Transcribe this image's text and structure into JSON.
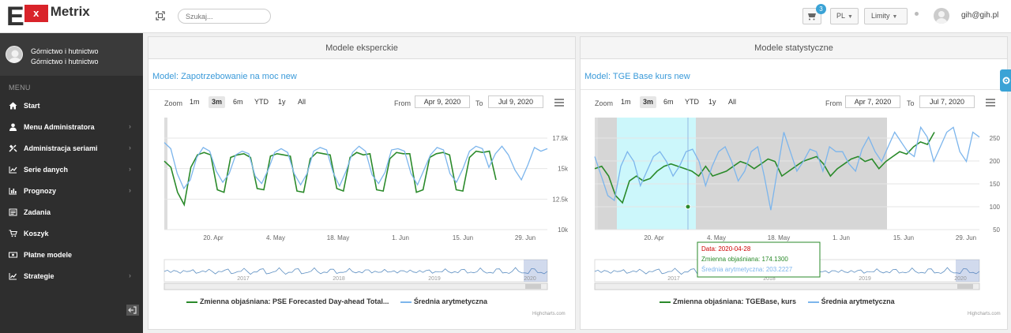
{
  "app": {
    "logo_e": "E",
    "logo_x": "x",
    "logo_name": "Metrix"
  },
  "topbar": {
    "search_placeholder": "Szukaj...",
    "cart_count": "3",
    "language": "PL",
    "limits_label": "Limity",
    "user_email": "gih@gih.pl"
  },
  "sidebar": {
    "profile_line1": "Górnictwo i hutnictwo",
    "profile_line2": "Górnictwo i hutnictwo",
    "menu_heading": "MENU",
    "items": [
      {
        "label": "Start",
        "icon": "home-icon",
        "has_children": false
      },
      {
        "label": "Menu Administratora",
        "icon": "user-icon",
        "has_children": true
      },
      {
        "label": "Administracja seriami",
        "icon": "tools-icon",
        "has_children": true
      },
      {
        "label": "Serie danych",
        "icon": "line-chart-icon",
        "has_children": true
      },
      {
        "label": "Prognozy",
        "icon": "bar-chart-icon",
        "has_children": true
      },
      {
        "label": "Zadania",
        "icon": "list-icon",
        "has_children": false
      },
      {
        "label": "Koszyk",
        "icon": "cart-icon",
        "has_children": false
      },
      {
        "label": "Płatne modele",
        "icon": "money-icon",
        "has_children": false
      },
      {
        "label": "Strategie",
        "icon": "trend-icon",
        "has_children": true
      }
    ]
  },
  "panels": [
    {
      "header": "Modele eksperckie",
      "model_title": "Model: Zapotrzebowanie na moc new",
      "zoom_label": "Zoom",
      "zoom_options": [
        "1m",
        "3m",
        "6m",
        "YTD",
        "1y",
        "All"
      ],
      "zoom_active": "3m",
      "from_label": "From",
      "from_date": "Apr 9, 2020",
      "to_label": "To",
      "to_date": "Jul 9, 2020",
      "credits": "Highcharts.com"
    },
    {
      "header": "Modele statystyczne",
      "model_title": "Model: TGE Base kurs new",
      "zoom_label": "Zoom",
      "zoom_options": [
        "1m",
        "3m",
        "6m",
        "YTD",
        "1y",
        "All"
      ],
      "zoom_active": "3m",
      "from_label": "From",
      "from_date": "Apr 7, 2020",
      "to_label": "To",
      "to_date": "Jul 7, 2020",
      "credits": "Highcharts.com"
    }
  ],
  "chart_data": [
    {
      "type": "line",
      "x_tick_labels": [
        "20. Apr",
        "4. May",
        "18. May",
        "1. Jun",
        "15. Jun",
        "29. Jun"
      ],
      "y_tick_labels": [
        "17.5k",
        "15k",
        "12.5k",
        "10k"
      ],
      "ylim": [
        10000,
        19000
      ],
      "navigator_years": [
        "2017",
        "2018",
        "2019",
        "2020"
      ],
      "series": [
        {
          "name": "Zmienna objaśniana: PSE Forecasted Day-ahead Total...",
          "color": "#2a8a2a",
          "values": [
            15500,
            15000,
            13000,
            12000,
            15000,
            16000,
            16200,
            16000,
            13200,
            13000,
            15800,
            16000,
            16100,
            15800,
            13300,
            13200,
            15900,
            16100,
            16000,
            15900,
            13100,
            13000,
            15700,
            16200,
            16100,
            16000,
            13300,
            13100,
            15800,
            16200,
            16000,
            16100,
            13200,
            13100,
            15700,
            16200,
            16100,
            16100,
            13000,
            13200,
            15800,
            16100,
            16200,
            16000,
            13200,
            13100,
            15800,
            16300,
            16200,
            16300,
            14000
          ]
        },
        {
          "name": "Średnia arytmetyczna",
          "color": "#7cb5ec",
          "values": [
            17000,
            16500,
            14500,
            13300,
            14000,
            15800,
            16600,
            16300,
            14700,
            13800,
            14500,
            16000,
            16300,
            16100,
            14300,
            13700,
            14800,
            16200,
            16500,
            16200,
            14500,
            13600,
            14500,
            16300,
            16600,
            16400,
            14600,
            13500,
            14700,
            16200,
            16700,
            16300,
            14400,
            13700,
            14600,
            16400,
            16500,
            16300,
            14500,
            13600,
            14800,
            16000,
            16600,
            16400,
            14500,
            13800,
            14900,
            16300,
            16700,
            16500,
            15000,
            16100,
            16700,
            16000,
            14800,
            14000,
            15200,
            16600,
            16300,
            16500
          ]
        }
      ]
    },
    {
      "type": "line",
      "x_tick_labels": [
        "20. Apr",
        "4. May",
        "18. May",
        "1. Jun",
        "15. Jun",
        "29. Jun"
      ],
      "y_tick_labels": [
        "250",
        "200",
        "150",
        "100",
        "50"
      ],
      "ylim": [
        40,
        270
      ],
      "navigator_years": [
        "2017",
        "2018",
        "2019",
        "2020"
      ],
      "series": [
        {
          "name": "Zmienna objaśniana: TGEBase, kurs",
          "color": "#2a8a2a",
          "values": [
            165,
            170,
            150,
            110,
            95,
            140,
            150,
            140,
            145,
            160,
            170,
            175,
            170,
            165,
            160,
            150,
            170,
            150,
            155,
            160,
            170,
            180,
            175,
            165,
            175,
            185,
            180,
            150,
            160,
            170,
            180,
            185,
            190,
            175,
            150,
            165,
            175,
            185,
            190,
            180,
            185,
            165,
            180,
            190,
            200,
            195,
            210,
            220,
            215,
            240
          ]
        },
        {
          "name": "Średnia arytmetyczna",
          "color": "#7cb5ec",
          "values": [
            190,
            150,
            110,
            100,
            170,
            200,
            180,
            130,
            160,
            190,
            200,
            180,
            150,
            170,
            200,
            205,
            180,
            130,
            170,
            200,
            210,
            180,
            140,
            160,
            200,
            210,
            150,
            80,
            160,
            240,
            200,
            160,
            180,
            205,
            200,
            160,
            210,
            200,
            200,
            175,
            160,
            205,
            230,
            200,
            180,
            210,
            240,
            220,
            200,
            190,
            250,
            230,
            180,
            210,
            240,
            250,
            200,
            180,
            240,
            230
          ]
        }
      ],
      "tooltip": {
        "date_label": "Data: 2020-04-28",
        "line1": "Zmienna objaśniana: 174.1300",
        "line2": "Średnia arytmetyczna: 203.2227"
      }
    }
  ]
}
